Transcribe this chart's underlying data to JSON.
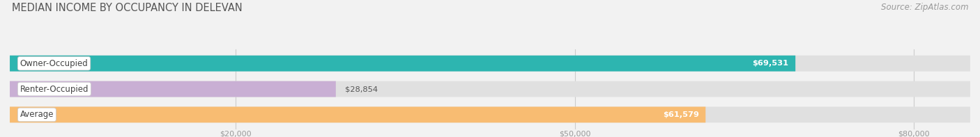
{
  "title": "MEDIAN INCOME BY OCCUPANCY IN DELEVAN",
  "source": "Source: ZipAtlas.com",
  "categories": [
    "Owner-Occupied",
    "Renter-Occupied",
    "Average"
  ],
  "values": [
    69531,
    28854,
    61579
  ],
  "bar_colors": [
    "#2db5b0",
    "#c9afd4",
    "#f8bc72"
  ],
  "bar_labels": [
    "$69,531",
    "$28,854",
    "$61,579"
  ],
  "xlim": [
    0,
    85000
  ],
  "xticks": [
    20000,
    50000,
    80000
  ],
  "xtick_labels": [
    "$20,000",
    "$50,000",
    "$80,000"
  ],
  "background_color": "#f2f2f2",
  "bar_bg_color": "#e0e0e0",
  "title_fontsize": 10.5,
  "source_fontsize": 8.5,
  "bar_height": 0.62,
  "value_label_threshold": 40000
}
